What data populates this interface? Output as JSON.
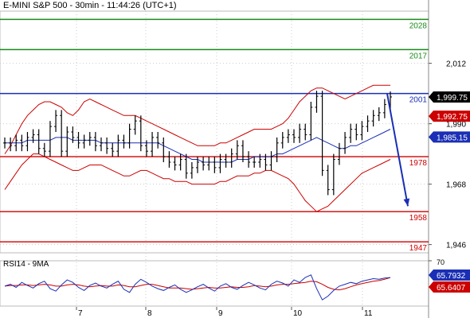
{
  "header": {
    "title": "E-MINI S&P 500 - 30min - 11:44:26 (UTC+1)"
  },
  "rsi_panel": {
    "title": "RSI14 - 9MA"
  },
  "chart_data": [
    {
      "type": "candlestick",
      "title": "E-MINI S&P 500 - 30min - 11:44:26 (UTC+1)",
      "x_tick_labels": [
        "7",
        "8",
        "9",
        "10",
        "11"
      ],
      "y_tick_labels": [
        {
          "label": "2,012",
          "value": 2012
        },
        {
          "label": "1,990",
          "value": 1990
        },
        {
          "label": "1,968",
          "value": 1968
        },
        {
          "label": "1,946",
          "value": 1946
        }
      ],
      "ylim": [
        1943,
        2031
      ],
      "grid": true,
      "price_labels": [
        {
          "label": "1,999.75",
          "value": 1999.75,
          "color": "#000000",
          "text_color": "#ffffff"
        },
        {
          "label": "1,992.75",
          "value": 1992.75,
          "color": "#cc0000",
          "text_color": "#ffffff"
        },
        {
          "label": "1,985.15",
          "value": 1985.15,
          "color": "#1a2fb5",
          "text_color": "#ffffff"
        }
      ],
      "levels": [
        {
          "label": "2028",
          "value": 2028,
          "color": "#1a8a1a"
        },
        {
          "label": "2017",
          "value": 2017,
          "color": "#1a8a1a"
        },
        {
          "label": "2001",
          "value": 2001,
          "color": "#1a2fb5"
        },
        {
          "label": "1978",
          "value": 1978,
          "color": "#cc0000"
        },
        {
          "label": "1958",
          "value": 1958,
          "color": "#cc0000"
        },
        {
          "label": "1947",
          "value": 1947,
          "color": "#cc0000"
        }
      ],
      "forecast_arrow": {
        "from_value": 2001,
        "to_value": 1960,
        "color": "#1a2fb5"
      },
      "close_series": [
        1983,
        1982,
        1984,
        1982,
        1985,
        1986,
        1981,
        1980,
        1989,
        1993,
        1980,
        1987,
        1985,
        1983,
        1984,
        1985,
        1982,
        1983,
        1981,
        1980,
        1984,
        1983,
        1988,
        1991,
        1982,
        1980,
        1985,
        1983,
        1978,
        1976,
        1975,
        1977,
        1972,
        1974,
        1976,
        1975,
        1976,
        1974,
        1977,
        1976,
        1979,
        1982,
        1978,
        1976,
        1976,
        1977,
        1975,
        1978,
        1983,
        1985,
        1986,
        1985,
        1988,
        1986,
        1996,
        2000,
        1973,
        1966,
        1977,
        1981,
        1985,
        1988,
        1986,
        1989,
        1991,
        1993,
        1994,
        1997,
        1999.75
      ],
      "ma_series": [
        1983,
        1983,
        1983,
        1983,
        1984,
        1984,
        1984,
        1984,
        1984,
        1985,
        1985,
        1985,
        1984,
        1984,
        1984,
        1984,
        1984,
        1983,
        1983,
        1983,
        1983,
        1983,
        1983,
        1983,
        1983,
        1983,
        1983,
        1983,
        1982,
        1981,
        1980,
        1979,
        1978,
        1977,
        1977,
        1976,
        1976,
        1976,
        1976,
        1976,
        1976,
        1977,
        1977,
        1977,
        1978,
        1978,
        1978,
        1978,
        1979,
        1979,
        1980,
        1981,
        1982,
        1983,
        1984,
        1985,
        1984,
        1983,
        1982,
        1981,
        1981,
        1982,
        1982,
        1983,
        1984,
        1985,
        1986,
        1987,
        1988
      ],
      "upper_band": [
        1979,
        1982,
        1986,
        1990,
        1993,
        1995,
        1997,
        1998,
        1998,
        1997,
        1996,
        1994,
        1993,
        1995,
        1998,
        1999,
        1998,
        1997,
        1996,
        1995,
        1994,
        1993,
        1993,
        1993,
        1992,
        1991,
        1990,
        1989,
        1988,
        1987,
        1986,
        1985,
        1984,
        1983,
        1982,
        1982,
        1982,
        1982,
        1983,
        1983,
        1984,
        1985,
        1986,
        1987,
        1988,
        1988,
        1988,
        1988,
        1989,
        1990,
        1992,
        1995,
        1998,
        2000,
        2002,
        2003,
        2003,
        2002,
        2001,
        2000,
        1999,
        2000,
        2001,
        2002,
        2003,
        2004,
        2004,
        2004,
        2004
      ],
      "lower_band": [
        1966,
        1969,
        1972,
        1975,
        1977,
        1979,
        1979,
        1978,
        1977,
        1976,
        1975,
        1974,
        1973,
        1973,
        1974,
        1975,
        1975,
        1975,
        1974,
        1973,
        1972,
        1971,
        1971,
        1972,
        1973,
        1973,
        1972,
        1971,
        1970,
        1970,
        1969,
        1969,
        1969,
        1968,
        1968,
        1968,
        1968,
        1968,
        1969,
        1969,
        1970,
        1971,
        1971,
        1971,
        1972,
        1972,
        1973,
        1973,
        1972,
        1971,
        1970,
        1968,
        1965,
        1962,
        1960,
        1958,
        1959,
        1960,
        1962,
        1964,
        1966,
        1968,
        1970,
        1972,
        1973,
        1974,
        1975,
        1976,
        1977
      ]
    },
    {
      "type": "line",
      "title": "RSI14 - 9MA",
      "ylim": [
        20,
        80
      ],
      "price_labels": [
        {
          "label": "65.7932",
          "value": 65.7932,
          "color": "#1a2fb5",
          "text_color": "#ffffff"
        },
        {
          "label": "65.6407",
          "value": 65.6407,
          "color": "#cc0000",
          "text_color": "#ffffff"
        }
      ],
      "top_tick": "70",
      "rsi_series": [
        52,
        55,
        50,
        58,
        53,
        49,
        56,
        60,
        48,
        44,
        54,
        62,
        58,
        50,
        45,
        53,
        57,
        52,
        49,
        55,
        60,
        47,
        42,
        55,
        63,
        58,
        52,
        48,
        45,
        50,
        54,
        47,
        42,
        46,
        51,
        55,
        49,
        44,
        52,
        56,
        50,
        47,
        53,
        58,
        54,
        49,
        46,
        55,
        60,
        57,
        52,
        62,
        58,
        66,
        70,
        48,
        30,
        36,
        45,
        52,
        55,
        58,
        56,
        60,
        62,
        64,
        63,
        65,
        65.79
      ],
      "ma_series": [
        52,
        53,
        53,
        54,
        54,
        53,
        54,
        55,
        54,
        52,
        52,
        54,
        55,
        54,
        52,
        51,
        52,
        53,
        52,
        52,
        54,
        53,
        51,
        51,
        53,
        55,
        55,
        53,
        51,
        49,
        49,
        49,
        48,
        47,
        48,
        49,
        50,
        49,
        49,
        50,
        51,
        50,
        50,
        51,
        53,
        52,
        51,
        52,
        54,
        55,
        55,
        56,
        57,
        58,
        60,
        59,
        55,
        50,
        47,
        46,
        48,
        51,
        54,
        56,
        58,
        60,
        61,
        63,
        65.64
      ]
    }
  ]
}
